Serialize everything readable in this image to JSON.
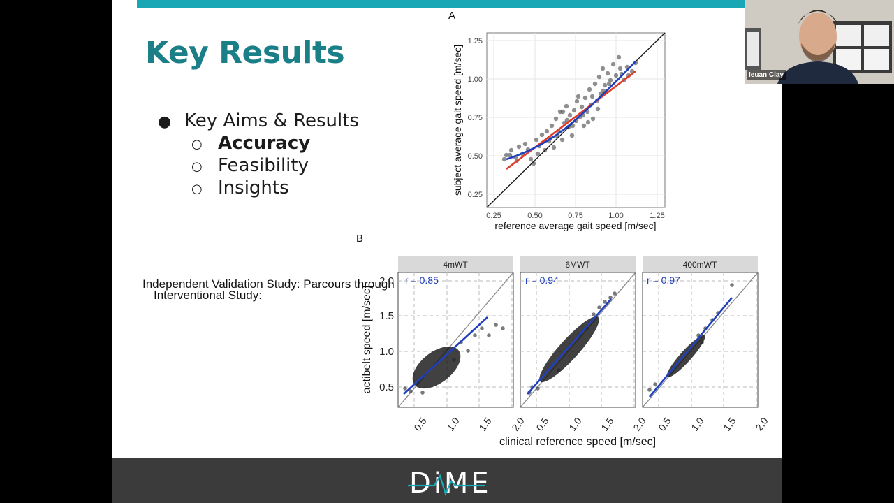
{
  "slide": {
    "title": "Key Results",
    "bullet_main": "Key Aims & Results",
    "sub_bullets": [
      "Accuracy",
      "Feasibility",
      "Insights"
    ],
    "note_line1": "Independent Validation Study: Parcours through hospital",
    "note_line2": "Interventional Study:"
  },
  "panel_a": {
    "label": "A",
    "xlabel": "reference average gait speed [m/sec]",
    "ylabel": "subject average gait speed [m/sec]",
    "xticks": [
      "0.25",
      "0.50",
      "0.75",
      "1.00",
      "1.25"
    ],
    "yticks": [
      "1.25",
      "1.00",
      "0.75",
      "0.50",
      "0.25"
    ]
  },
  "panel_b": {
    "label": "B",
    "ylabel": "actibelt speed [m/sec]",
    "xlabel": "clinical reference speed [m/sec]",
    "facets": [
      {
        "title": "4mWT",
        "r": "r = 0.85"
      },
      {
        "title": "6MWT",
        "r": "r = 0.94"
      },
      {
        "title": "400mWT",
        "r": "r = 0.97"
      }
    ],
    "yticks": [
      "2.0",
      "1.5",
      "1.0",
      "0.5"
    ],
    "xticks": [
      "0.5",
      "1.0",
      "1.5",
      "2.0"
    ]
  },
  "footer": {
    "logo_text": "DiME"
  },
  "video": {
    "participant_name": "Ieuan Clay"
  },
  "colors": {
    "accent": "#1aa7b5",
    "title": "#1a7f86",
    "footer": "#3b3b3b",
    "fit_blue": "#1f3fbf",
    "fit_red": "#e03a2a"
  }
}
